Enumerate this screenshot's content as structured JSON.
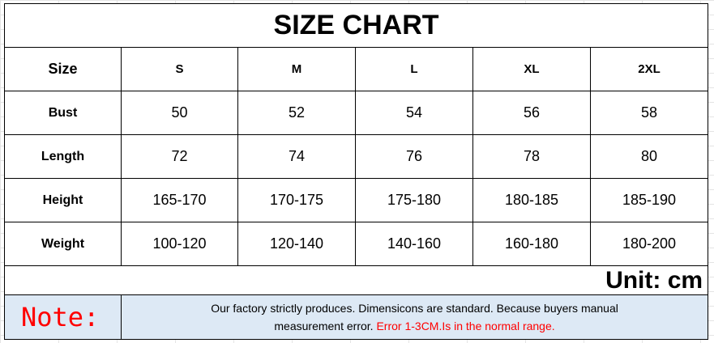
{
  "title": "SIZE CHART",
  "header": [
    "Size",
    "S",
    "M",
    "L",
    "XL",
    "2XL"
  ],
  "rows": [
    {
      "label": "Bust",
      "values": [
        "50",
        "52",
        "54",
        "56",
        "58"
      ]
    },
    {
      "label": "Length",
      "values": [
        "72",
        "74",
        "76",
        "78",
        "80"
      ]
    },
    {
      "label": "Height",
      "values": [
        "165-170",
        "170-175",
        "175-180",
        "180-185",
        "185-190"
      ]
    },
    {
      "label": "Weight",
      "values": [
        "100-120",
        "120-140",
        "140-160",
        "160-180",
        "180-200"
      ]
    }
  ],
  "unit": "Unit: cm",
  "note": {
    "label": "Note:",
    "text_line1": "Our factory strictly produces. Dimensicons are standard. Because buyers manual",
    "text_line2": "measurement error. ",
    "text_red": "Error 1-3CM.Is in the normal range."
  },
  "colors": {
    "note_bg": "#dde9f5",
    "note_red": "#ff0000"
  }
}
